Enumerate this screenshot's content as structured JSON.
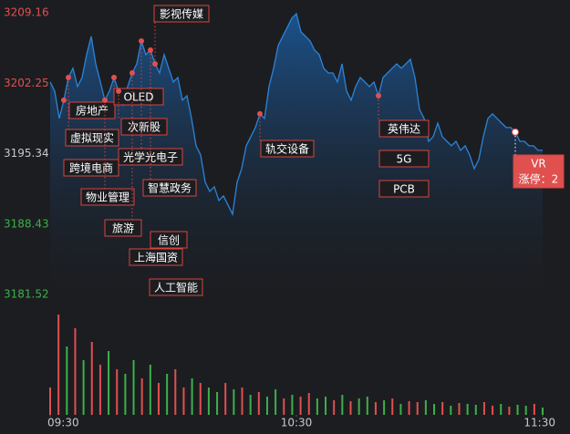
{
  "chart_data": {
    "type": "line",
    "ylim": [
      3181.52,
      3209.16
    ],
    "yticks": [
      3209.16,
      3202.25,
      3195.34,
      3188.43,
      3181.52
    ],
    "ytick_colors": [
      "#e0504f",
      "#e0504f",
      "#c8c8c8",
      "#3cb04a",
      "#3cb04a"
    ],
    "xlim": [
      0,
      108
    ],
    "xticks": [
      {
        "value": 0,
        "label": "09:30"
      },
      {
        "value": 54,
        "label": "10:30"
      },
      {
        "value": 108,
        "label": "11:30"
      }
    ],
    "series": [
      {
        "color": "#2b84d8",
        "values": [
          3202.37,
          3201.47,
          3198.79,
          3200.58,
          3202.81,
          3203.71,
          3201.92,
          3202.81,
          3205.05,
          3206.84,
          3204.15,
          3202.37,
          3200.58,
          3201.47,
          3202.81,
          3201.47,
          3200.13,
          3201.92,
          3203.26,
          3204.15,
          3206.39,
          3205.05,
          3205.49,
          3204.15,
          3203.26,
          3205.05,
          3203.71,
          3202.37,
          3202.81,
          3200.58,
          3201.02,
          3198.79,
          3196.11,
          3195.21,
          3192.53,
          3191.64,
          3192.08,
          3190.74,
          3191.19,
          3190.3,
          3189.4,
          3192.53,
          3193.87,
          3196.11,
          3197.0,
          3197.9,
          3199.24,
          3198.79,
          3201.92,
          3203.71,
          3205.94,
          3206.84,
          3207.73,
          3208.62,
          3209.07,
          3207.28,
          3206.84,
          3206.39,
          3205.49,
          3205.05,
          3203.71,
          3203.26,
          3203.26,
          3202.37,
          3204.15,
          3201.47,
          3200.58,
          3201.92,
          3202.81,
          3202.37,
          3201.92,
          3202.37,
          3201.02,
          3202.81,
          3203.26,
          3203.71,
          3204.15,
          3203.71,
          3204.15,
          3204.6,
          3202.81,
          3199.68,
          3198.79,
          3196.55,
          3197.0,
          3198.34,
          3197.0,
          3196.55,
          3196.11,
          3196.55,
          3195.66,
          3196.11,
          3195.21,
          3193.87,
          3194.77,
          3197.0,
          3198.79,
          3199.24,
          3198.79,
          3198.34,
          3197.9,
          3197.9,
          3197.45,
          3196.55,
          3196.55,
          3196.11,
          3196.11,
          3195.66,
          3195.66
        ]
      }
    ],
    "volume": {
      "up_color": "#e0504f",
      "down_color": "#3cb04a",
      "values": [
        30,
        110,
        75,
        95,
        60,
        80,
        55,
        70,
        50,
        45,
        60,
        40,
        55,
        35,
        45,
        50,
        30,
        40,
        35,
        30,
        25,
        35,
        28,
        30,
        22,
        25,
        20,
        28,
        18,
        22,
        20,
        24,
        18,
        20,
        16,
        22,
        15,
        18,
        20,
        14,
        16,
        18,
        12,
        15,
        14,
        16,
        12,
        14,
        10,
        13,
        12,
        11,
        14,
        10,
        12,
        9,
        11,
        10,
        12,
        8
      ],
      "up": [
        1,
        1,
        0,
        1,
        0,
        1,
        1,
        0,
        1,
        0,
        0,
        1,
        0,
        1,
        0,
        1,
        1,
        0,
        1,
        0,
        0,
        1,
        0,
        1,
        0,
        1,
        0,
        0,
        1,
        0,
        1,
        1,
        0,
        0,
        1,
        0,
        1,
        0,
        0,
        1,
        0,
        1,
        0,
        1,
        1,
        0,
        0,
        1,
        0,
        1,
        0,
        0,
        1,
        1,
        0,
        1,
        0,
        0,
        1,
        0
      ]
    },
    "annotations": [
      "影视传媒",
      "房地产",
      "OLED",
      "虚拟现实",
      "次新股",
      "跨境电商",
      "光学光电子",
      "物业管理",
      "智慧政务",
      "旅游",
      "信创",
      "上海国资",
      "人工智能",
      "轨交设备",
      "英伟达",
      "5G",
      "PCB",
      "VR"
    ],
    "vr_note": "涨停：2"
  }
}
